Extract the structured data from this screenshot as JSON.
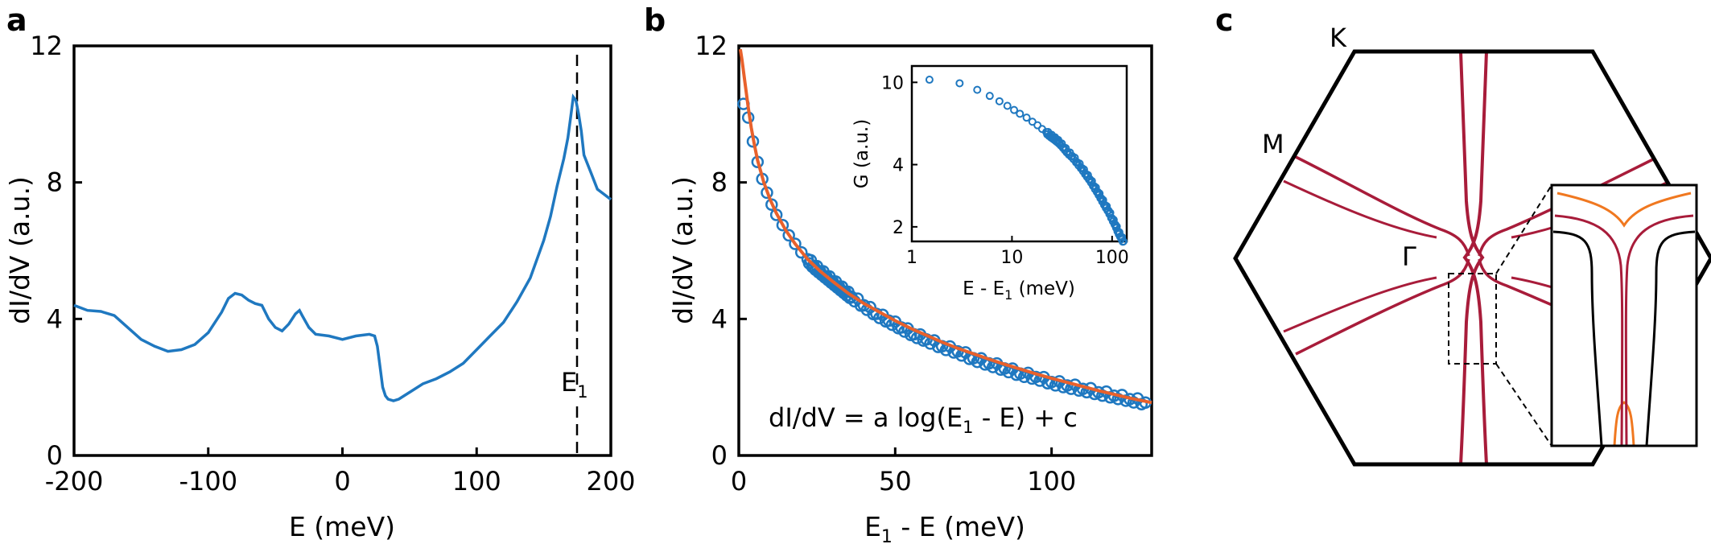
{
  "panels": {
    "a": "a",
    "b": "b",
    "c": "c"
  },
  "colors": {
    "data": "#1f78c0",
    "fit": "#e8612c",
    "band": "#a81c3a",
    "band_orange": "#f07820",
    "black": "#000000"
  },
  "chart_data": [
    {
      "type": "line",
      "panel": "a",
      "xlabel": "E (meV)",
      "ylabel": "dI/dV (a.u.)",
      "xlim": [
        -200,
        200
      ],
      "ylim": [
        0,
        12
      ],
      "xticks": [
        "-200",
        "-100",
        "0",
        "100",
        "200"
      ],
      "yticks": [
        "0",
        "4",
        "8",
        "12"
      ],
      "annotation": {
        "label": "E",
        "subscript": "1",
        "x": 172
      },
      "series": [
        {
          "x": [
            -200,
            -190,
            -180,
            -170,
            -160,
            -150,
            -140,
            -130,
            -120,
            -110,
            -100,
            -90,
            -85,
            -80,
            -75,
            -70,
            -65,
            -60,
            -55,
            -50,
            -45,
            -40,
            -35,
            -32,
            -30,
            -25,
            -20,
            -10,
            0,
            10,
            20,
            24,
            26,
            28,
            30,
            32,
            34,
            38,
            42,
            50,
            60,
            70,
            80,
            90,
            100,
            110,
            120,
            130,
            140,
            150,
            155,
            160,
            165,
            168,
            170,
            172,
            174,
            176,
            178,
            180,
            185,
            190,
            195,
            200
          ],
          "y": [
            4.4,
            4.25,
            4.22,
            4.1,
            3.75,
            3.4,
            3.2,
            3.05,
            3.1,
            3.25,
            3.6,
            4.2,
            4.6,
            4.75,
            4.7,
            4.55,
            4.45,
            4.4,
            4.0,
            3.75,
            3.65,
            3.85,
            4.15,
            4.25,
            4.1,
            3.75,
            3.55,
            3.5,
            3.4,
            3.5,
            3.55,
            3.5,
            3.2,
            2.6,
            2.0,
            1.75,
            1.65,
            1.6,
            1.65,
            1.85,
            2.1,
            2.25,
            2.45,
            2.7,
            3.1,
            3.5,
            3.9,
            4.5,
            5.2,
            6.3,
            7.0,
            7.9,
            8.7,
            9.3,
            9.9,
            10.5,
            10.4,
            10.0,
            9.5,
            8.8,
            8.3,
            7.8,
            7.65,
            7.5
          ]
        }
      ]
    },
    {
      "type": "scatter",
      "panel": "b",
      "xlabel_main": "E",
      "xlabel_sub": "1",
      "xlabel_rest": " - E (meV)",
      "ylabel": "dI/dV (a.u.)",
      "xlim": [
        0,
        132
      ],
      "ylim": [
        0,
        12
      ],
      "xticks": [
        "0",
        "50",
        "100"
      ],
      "yticks": [
        "0",
        "4",
        "8",
        "12"
      ],
      "equation_parts": [
        "dI/dV = a log(E",
        "1",
        " - E) + c"
      ],
      "series": [
        {
          "x": [
            1.5,
            3,
            4.5,
            6,
            7.5,
            9,
            10.5,
            12,
            14,
            16,
            18,
            20,
            22,
            24,
            26,
            28,
            30,
            32,
            34,
            36,
            40,
            44,
            48,
            52,
            56,
            60,
            65,
            70,
            75,
            80,
            85,
            90,
            95,
            100,
            105,
            110,
            115,
            120,
            125,
            130
          ],
          "y": [
            10.3,
            9.9,
            9.2,
            8.6,
            8.1,
            7.7,
            7.35,
            7.05,
            6.75,
            6.45,
            6.2,
            5.95,
            5.75,
            5.55,
            5.4,
            5.25,
            5.1,
            4.95,
            4.8,
            4.65,
            4.4,
            4.15,
            3.95,
            3.75,
            3.55,
            3.4,
            3.2,
            3.05,
            2.85,
            2.7,
            2.55,
            2.4,
            2.3,
            2.15,
            2.05,
            1.95,
            1.85,
            1.75,
            1.65,
            1.55
          ]
        },
        {
          "fit": true,
          "x": [
            0.5,
            1,
            2,
            3,
            4,
            5,
            6,
            8,
            10,
            12,
            15,
            18,
            22,
            26,
            30,
            35,
            40,
            45,
            50,
            55,
            60,
            65,
            70,
            75,
            80,
            85,
            90,
            95,
            100,
            105,
            110,
            115,
            120,
            125,
            132
          ],
          "y": [
            11.9,
            11.6,
            10.9,
            10.2,
            9.6,
            9.1,
            8.65,
            8.0,
            7.5,
            7.1,
            6.6,
            6.2,
            5.75,
            5.4,
            5.1,
            4.75,
            4.45,
            4.2,
            3.95,
            3.72,
            3.52,
            3.32,
            3.14,
            2.98,
            2.82,
            2.67,
            2.53,
            2.39,
            2.26,
            2.14,
            2.02,
            1.9,
            1.79,
            1.68,
            1.55
          ]
        }
      ]
    },
    {
      "type": "scatter",
      "panel": "b-inset",
      "xscale": "log",
      "yscale": "log",
      "xlabel_main": "E - E",
      "xlabel_sub": "1",
      "xlabel_rest": " (meV)",
      "ylabel": "G (a.u.)",
      "xlim": [
        1,
        140
      ],
      "ylim": [
        1.7,
        12
      ],
      "xticks": [
        "1",
        "10",
        "100"
      ],
      "yticks": [
        "2",
        "4",
        "10"
      ],
      "series": [
        {
          "x": [
            1.5,
            3,
            4.5,
            6,
            7.5,
            9,
            10.5,
            12,
            14,
            16,
            18,
            20,
            22,
            24,
            26,
            28,
            30,
            33,
            36,
            40,
            45,
            50,
            55,
            60,
            66,
            72,
            78,
            85,
            92,
            100,
            108,
            115,
            122,
            130
          ],
          "y": [
            10.3,
            9.9,
            9.2,
            8.6,
            8.1,
            7.7,
            7.35,
            7.05,
            6.75,
            6.45,
            6.2,
            5.95,
            5.75,
            5.55,
            5.4,
            5.25,
            5.1,
            4.85,
            4.6,
            4.4,
            4.1,
            3.85,
            3.6,
            3.4,
            3.15,
            2.95,
            2.75,
            2.55,
            2.4,
            2.2,
            2.05,
            1.9,
            1.8,
            1.7
          ]
        }
      ]
    }
  ],
  "bz": {
    "labels": {
      "K": "K",
      "M": "M",
      "Gamma": "Γ"
    }
  }
}
